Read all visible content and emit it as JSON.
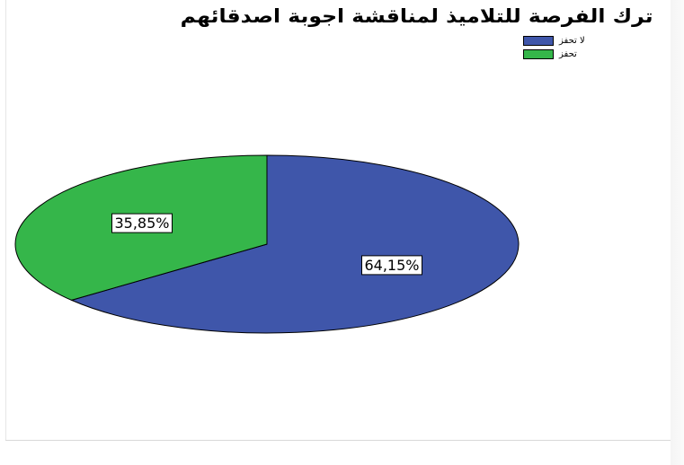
{
  "chart_data": {
    "type": "pie",
    "title": "ترك الفرصة للتلاميذ لمناقشة اجوبة اصدقائهم",
    "legend_position": "top-right",
    "slices": [
      {
        "label": "لا تحفز",
        "value": 64.15,
        "display": "64,15%",
        "color": "#3f56aa"
      },
      {
        "label": "تحفز",
        "value": 35.85,
        "display": "35,85%",
        "color": "#35b64a"
      }
    ]
  }
}
